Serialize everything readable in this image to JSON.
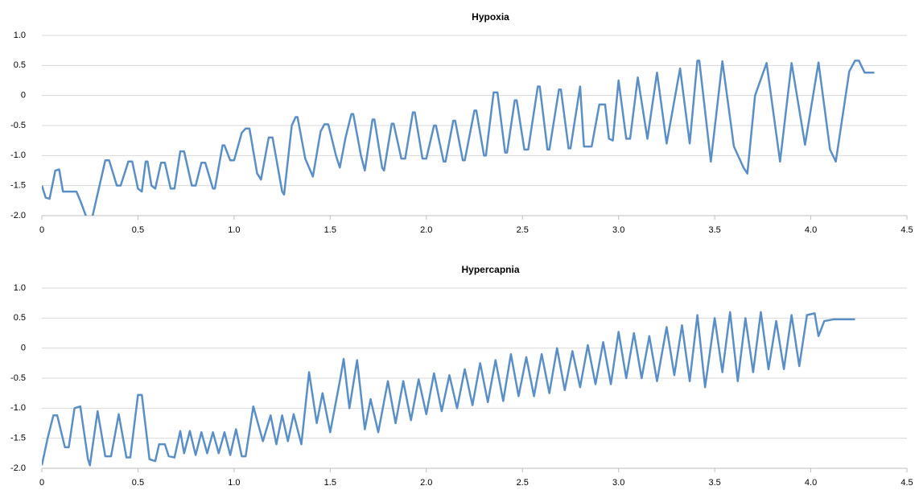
{
  "chart_data": [
    {
      "type": "line",
      "title": "Hypoxia",
      "color": "#5a8ec6",
      "grid": true,
      "xlim": [
        0,
        4.5
      ],
      "xticks": [
        0,
        0.5,
        {
          "value": 1,
          "label": "1.0"
        },
        1.5,
        {
          "value": 2,
          "label": "2.0"
        },
        2.5,
        {
          "value": 3,
          "label": "3.0"
        },
        3.5,
        {
          "value": 4,
          "label": "4.0"
        },
        4.5
      ],
      "ylim": [
        -2,
        1
      ],
      "yticks": [
        {
          "value": 1,
          "label": "1.0"
        },
        0.5,
        0,
        -0.5,
        {
          "value": -1,
          "label": "-1.0"
        },
        -1.5,
        {
          "value": -2,
          "label": "-2.0"
        }
      ],
      "x": [
        0,
        0.02,
        0.04,
        0.07,
        0.09,
        0.11,
        0.18,
        0.2,
        0.24,
        0.25,
        0.3,
        0.33,
        0.35,
        0.39,
        0.41,
        0.45,
        0.47,
        0.5,
        0.52,
        0.54,
        0.55,
        0.57,
        0.59,
        0.62,
        0.64,
        0.67,
        0.69,
        0.72,
        0.74,
        0.78,
        0.8,
        0.83,
        0.85,
        0.89,
        0.9,
        0.94,
        0.95,
        0.98,
        1.0,
        1.04,
        1.06,
        1.08,
        1.12,
        1.14,
        1.18,
        1.2,
        1.25,
        1.26,
        1.3,
        1.32,
        1.33,
        1.37,
        1.39,
        1.41,
        1.45,
        1.47,
        1.49,
        1.53,
        1.55,
        1.58,
        1.61,
        1.62,
        1.66,
        1.68,
        1.72,
        1.73,
        1.77,
        1.78,
        1.82,
        1.83,
        1.87,
        1.89,
        1.93,
        1.94,
        1.98,
        2.0,
        2.04,
        2.05,
        2.09,
        2.1,
        2.14,
        2.15,
        2.19,
        2.2,
        2.25,
        2.26,
        2.3,
        2.31,
        2.35,
        2.37,
        2.41,
        2.42,
        2.46,
        2.47,
        2.51,
        2.53,
        2.58,
        2.59,
        2.63,
        2.64,
        2.69,
        2.7,
        2.74,
        2.75,
        2.8,
        2.82,
        2.86,
        2.9,
        2.93,
        2.95,
        2.97,
        3.0,
        3.04,
        3.06,
        3.1,
        3.15,
        3.2,
        3.25,
        3.32,
        3.37,
        3.41,
        3.42,
        3.48,
        3.54,
        3.6,
        3.65,
        3.67,
        3.71,
        3.77,
        3.84,
        3.9,
        3.97,
        4.04,
        4.1,
        4.13,
        4.2,
        4.23,
        4.25,
        4.28,
        4.33
      ],
      "values": [
        -1.5,
        -1.7,
        -1.72,
        -1.25,
        -1.23,
        -1.6,
        -1.6,
        -1.75,
        -2.1,
        -2.2,
        -1.5,
        -1.08,
        -1.08,
        -1.5,
        -1.5,
        -1.1,
        -1.1,
        -1.55,
        -1.6,
        -1.1,
        -1.1,
        -1.5,
        -1.55,
        -1.12,
        -1.12,
        -1.55,
        -1.55,
        -0.93,
        -0.93,
        -1.5,
        -1.5,
        -1.12,
        -1.12,
        -1.55,
        -1.55,
        -0.83,
        -0.83,
        -1.08,
        -1.08,
        -0.62,
        -0.55,
        -0.55,
        -1.3,
        -1.4,
        -0.7,
        -0.7,
        -1.6,
        -1.65,
        -0.5,
        -0.36,
        -0.36,
        -1.05,
        -1.2,
        -1.35,
        -0.6,
        -0.48,
        -0.48,
        -1.0,
        -1.2,
        -0.7,
        -0.31,
        -0.31,
        -1.0,
        -1.25,
        -0.4,
        -0.4,
        -1.2,
        -1.25,
        -0.47,
        -0.47,
        -1.05,
        -1.05,
        -0.28,
        -0.28,
        -1.05,
        -1.05,
        -0.5,
        -0.5,
        -1.1,
        -1.1,
        -0.42,
        -0.42,
        -1.08,
        -1.08,
        -0.25,
        -0.25,
        -1.0,
        -1.0,
        0.05,
        0.05,
        -0.95,
        -0.95,
        -0.08,
        -0.08,
        -0.9,
        -0.9,
        0.15,
        0.15,
        -0.9,
        -0.9,
        0.1,
        0.1,
        -0.88,
        -0.88,
        0.15,
        -0.85,
        -0.85,
        -0.15,
        -0.15,
        -0.72,
        -0.75,
        0.25,
        -0.72,
        -0.72,
        0.3,
        -0.72,
        0.38,
        -0.8,
        0.45,
        -0.8,
        0.58,
        0.58,
        -1.1,
        0.57,
        -0.85,
        -1.2,
        -1.3,
        0.0,
        0.54,
        -1.1,
        0.54,
        -0.82,
        0.55,
        -0.9,
        -1.1,
        0.4,
        0.58,
        0.58,
        0.38,
        0.38
      ]
    },
    {
      "type": "line",
      "title": "Hypercapnia",
      "color": "#5a8ec6",
      "grid": true,
      "xlim": [
        0,
        4.5
      ],
      "xticks": [
        0,
        0.5,
        {
          "value": 1,
          "label": "1.0"
        },
        1.5,
        {
          "value": 2,
          "label": "2.0"
        },
        2.5,
        {
          "value": 3,
          "label": "3.0"
        },
        3.5,
        {
          "value": 4,
          "label": "4.0"
        },
        4.5
      ],
      "ylim": [
        -2,
        1
      ],
      "yticks": [
        {
          "value": 1,
          "label": "1.0"
        },
        0.5,
        0,
        -0.5,
        {
          "value": -1,
          "label": "-1.0"
        },
        -1.5,
        {
          "value": -2,
          "label": "-2.0"
        }
      ],
      "x": [
        0,
        0.03,
        0.06,
        0.08,
        0.12,
        0.14,
        0.17,
        0.2,
        0.24,
        0.25,
        0.29,
        0.33,
        0.36,
        0.4,
        0.44,
        0.46,
        0.5,
        0.52,
        0.56,
        0.59,
        0.61,
        0.64,
        0.66,
        0.69,
        0.72,
        0.74,
        0.77,
        0.8,
        0.83,
        0.86,
        0.89,
        0.92,
        0.95,
        0.98,
        1.01,
        1.04,
        1.06,
        1.1,
        1.15,
        1.19,
        1.22,
        1.25,
        1.28,
        1.31,
        1.35,
        1.39,
        1.43,
        1.46,
        1.5,
        1.55,
        1.57,
        1.6,
        1.64,
        1.68,
        1.71,
        1.75,
        1.8,
        1.84,
        1.88,
        1.92,
        1.96,
        2.0,
        2.04,
        2.08,
        2.12,
        2.16,
        2.2,
        2.24,
        2.28,
        2.32,
        2.36,
        2.4,
        2.44,
        2.48,
        2.52,
        2.56,
        2.6,
        2.64,
        2.68,
        2.72,
        2.76,
        2.8,
        2.84,
        2.88,
        2.92,
        2.96,
        3.0,
        3.04,
        3.08,
        3.12,
        3.16,
        3.2,
        3.25,
        3.29,
        3.33,
        3.37,
        3.41,
        3.45,
        3.5,
        3.54,
        3.58,
        3.62,
        3.66,
        3.7,
        3.74,
        3.78,
        3.82,
        3.86,
        3.9,
        3.94,
        3.98,
        4.02,
        4.04,
        4.07,
        4.12,
        4.23
      ],
      "values": [
        -1.95,
        -1.5,
        -1.12,
        -1.12,
        -1.65,
        -1.65,
        -1.0,
        -0.97,
        -1.85,
        -1.95,
        -1.05,
        -1.8,
        -1.8,
        -1.1,
        -1.82,
        -1.82,
        -0.78,
        -0.78,
        -1.85,
        -1.88,
        -1.6,
        -1.6,
        -1.8,
        -1.82,
        -1.38,
        -1.75,
        -1.38,
        -1.78,
        -1.4,
        -1.75,
        -1.4,
        -1.75,
        -1.4,
        -1.78,
        -1.35,
        -1.8,
        -1.8,
        -0.97,
        -1.55,
        -1.12,
        -1.6,
        -1.12,
        -1.55,
        -1.1,
        -1.6,
        -0.4,
        -1.25,
        -0.75,
        -1.4,
        -0.55,
        -0.18,
        -1.0,
        -0.2,
        -1.35,
        -0.85,
        -1.4,
        -0.55,
        -1.25,
        -0.55,
        -1.2,
        -0.52,
        -1.1,
        -0.42,
        -1.05,
        -0.45,
        -1.0,
        -0.35,
        -0.95,
        -0.25,
        -0.9,
        -0.2,
        -0.88,
        -0.1,
        -0.8,
        -0.15,
        -0.8,
        -0.1,
        -0.75,
        0.0,
        -0.7,
        -0.05,
        -0.65,
        0.05,
        -0.6,
        0.1,
        -0.6,
        0.27,
        -0.5,
        0.25,
        -0.5,
        0.2,
        -0.55,
        0.35,
        -0.45,
        0.38,
        -0.55,
        0.55,
        -0.65,
        0.5,
        -0.4,
        0.6,
        -0.55,
        0.5,
        -0.4,
        0.6,
        -0.35,
        0.45,
        -0.35,
        0.55,
        -0.3,
        0.55,
        0.58,
        0.2,
        0.45,
        0.48,
        0.48
      ]
    }
  ]
}
